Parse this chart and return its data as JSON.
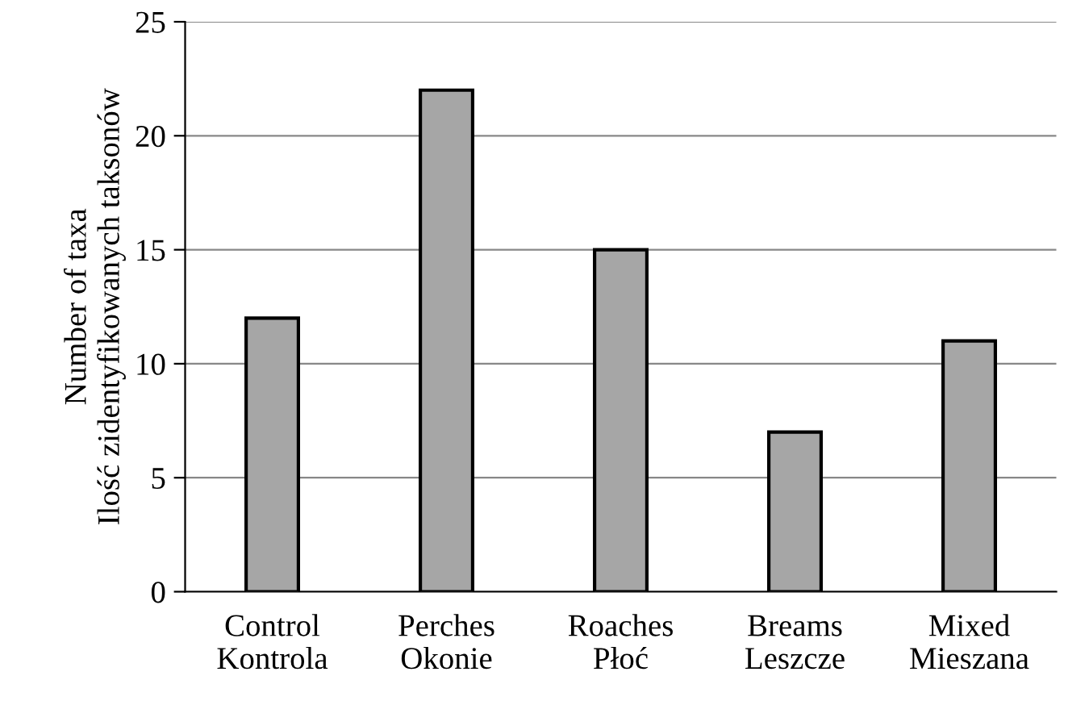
{
  "chart_data": {
    "type": "bar",
    "ylabel": "Number of taxa\nIlość zidentyfikowanych taksonów",
    "categories": [
      "Control\nKontrola",
      "Perches\nOkonie",
      "Roaches\nPłoć",
      "Breams\nLeszcze",
      "Mixed\nMieszana"
    ],
    "values": [
      12,
      22,
      15,
      7,
      11
    ],
    "color": "#a6a6a6",
    "ylim": [
      0,
      25
    ],
    "yticks": [
      0,
      5,
      10,
      15,
      20,
      25
    ],
    "grid": "y"
  }
}
